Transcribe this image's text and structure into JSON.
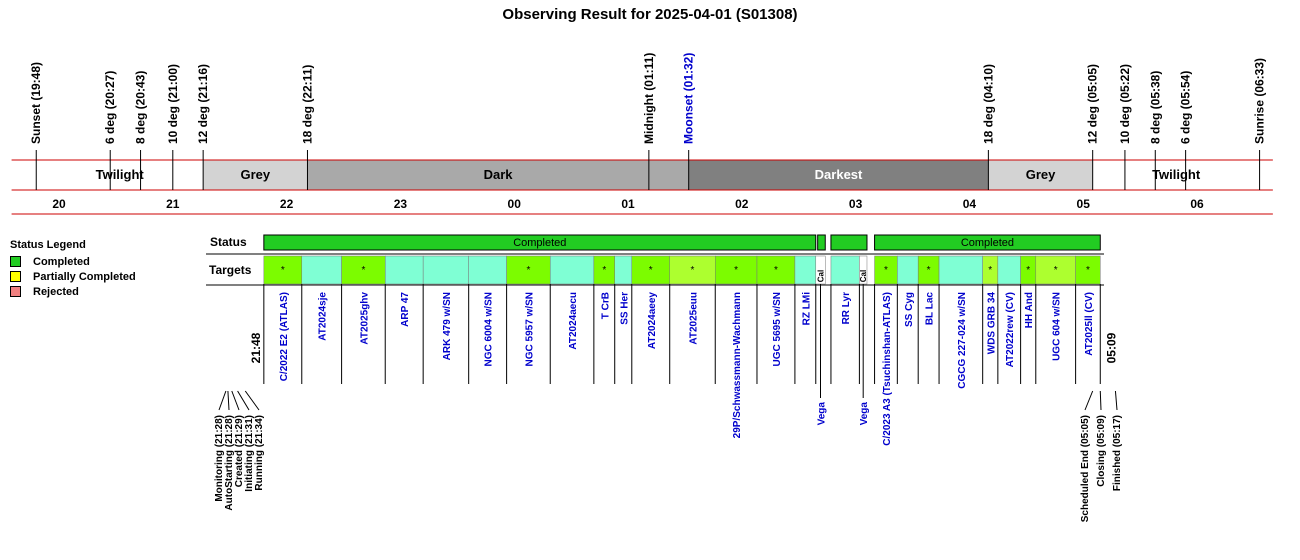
{
  "title": "Observing Result for 2025-04-01 (S01308)",
  "legend": {
    "title": "Status Legend",
    "items": [
      {
        "label": "Completed",
        "color": "#22cc22"
      },
      {
        "label": "Partially Completed",
        "color": "#ffff00"
      },
      {
        "label": "Rejected",
        "color": "#f08080"
      }
    ]
  },
  "chart_data": {
    "type": "timeline",
    "title": "Observing Result for 2025-04-01 (S01308)",
    "time_range": [
      "19:35",
      "06:40"
    ],
    "hour_ticks": [
      "20",
      "21",
      "22",
      "23",
      "00",
      "01",
      "02",
      "03",
      "04",
      "05",
      "06"
    ],
    "events": [
      {
        "label": "Sunset (19:48)",
        "time": "19:48"
      },
      {
        "label": "6 deg (20:27)",
        "time": "20:27"
      },
      {
        "label": "8 deg (20:43)",
        "time": "20:43"
      },
      {
        "label": "10 deg (21:00)",
        "time": "21:00"
      },
      {
        "label": "12 deg (21:16)",
        "time": "21:16"
      },
      {
        "label": "18 deg (22:11)",
        "time": "22:11"
      },
      {
        "label": "Midnight (01:11)",
        "time": "01:11"
      },
      {
        "label": "Moonset (01:32)",
        "time": "01:32",
        "color": "#0000cc"
      },
      {
        "label": "18 deg (04:10)",
        "time": "04:10"
      },
      {
        "label": "12 deg (05:05)",
        "time": "05:05"
      },
      {
        "label": "10 deg (05:22)",
        "time": "05:22"
      },
      {
        "label": "8 deg (05:38)",
        "time": "05:38"
      },
      {
        "label": "6 deg (05:54)",
        "time": "05:54"
      },
      {
        "label": "Sunrise (06:33)",
        "time": "06:33"
      }
    ],
    "phases": [
      {
        "label": "",
        "start": "19:35",
        "end": "19:48",
        "color": "#ffffff",
        "text": "#000000"
      },
      {
        "label": "Twilight",
        "start": "19:48",
        "end": "21:16",
        "color": "#ffffff",
        "text": "#000000"
      },
      {
        "label": "Grey",
        "start": "21:16",
        "end": "22:11",
        "color": "#d3d3d3",
        "text": "#000000"
      },
      {
        "label": "Dark",
        "start": "22:11",
        "end": "01:32",
        "color": "#a9a9a9",
        "text": "#000000"
      },
      {
        "label": "Darkest",
        "start": "01:32",
        "end": "04:10",
        "color": "#808080",
        "text": "#ffffff"
      },
      {
        "label": "Grey",
        "start": "04:10",
        "end": "05:05",
        "color": "#d3d3d3",
        "text": "#000000"
      },
      {
        "label": "Twilight",
        "start": "05:05",
        "end": "06:33",
        "color": "#ffffff",
        "text": "#000000"
      },
      {
        "label": "",
        "start": "06:33",
        "end": "06:40",
        "color": "#ffffff",
        "text": "#000000"
      }
    ],
    "status_row_label": "Status",
    "targets_row_label": "Targets",
    "status_segments": [
      {
        "start": "21:48",
        "end": "02:39",
        "status": "Completed",
        "label": "Completed"
      },
      {
        "start": "02:40",
        "end": "02:44",
        "status": "Completed",
        "label": ""
      },
      {
        "start": "02:47",
        "end": "03:06",
        "status": "Completed",
        "label": ""
      },
      {
        "start": "03:10",
        "end": "05:09",
        "status": "Completed",
        "label": "Completed"
      }
    ],
    "start_marker": "21:48",
    "end_marker": "05:09",
    "targets": [
      {
        "name": "C/2022 E2 (ATLAS)",
        "start": "21:48",
        "end": "22:08",
        "color": "#7cfc00",
        "mark": "*"
      },
      {
        "name": "AT2024sje",
        "start": "22:08",
        "end": "22:29",
        "color": "#7fffd4",
        "mark": ""
      },
      {
        "name": "AT2025ghv",
        "start": "22:29",
        "end": "22:52",
        "color": "#7cfc00",
        "mark": "*"
      },
      {
        "name": "ARP 47",
        "start": "22:52",
        "end": "23:12",
        "color": "#7fffd4",
        "mark": ""
      },
      {
        "name": "ARK 479 w/SN",
        "start": "23:12",
        "end": "23:36",
        "color": "#7fffd4",
        "mark": ""
      },
      {
        "name": "NGC 6004 w/SN",
        "start": "23:36",
        "end": "23:56",
        "color": "#7fffd4",
        "mark": ""
      },
      {
        "name": "NGC 5957 w/SN",
        "start": "23:56",
        "end": "00:19",
        "color": "#7cfc00",
        "mark": "*"
      },
      {
        "name": "AT2024aecu",
        "start": "00:19",
        "end": "00:42",
        "color": "#7fffd4",
        "mark": ""
      },
      {
        "name": "T CrB",
        "start": "00:42",
        "end": "00:53",
        "color": "#7cfc00",
        "mark": "*"
      },
      {
        "name": "SS Her",
        "start": "00:53",
        "end": "01:02",
        "color": "#7fffd4",
        "mark": ""
      },
      {
        "name": "AT2024aeey",
        "start": "01:02",
        "end": "01:22",
        "color": "#7cfc00",
        "mark": "*"
      },
      {
        "name": "AT2025euu",
        "start": "01:22",
        "end": "01:46",
        "color": "#adff2f",
        "mark": "*"
      },
      {
        "name": "29P/Schwassmann-Wachmann",
        "start": "01:46",
        "end": "02:08",
        "color": "#7cfc00",
        "mark": "*"
      },
      {
        "name": "UGC 5695 w/SN",
        "start": "02:08",
        "end": "02:28",
        "color": "#7cfc00",
        "mark": "*"
      },
      {
        "name": "RZ LMi",
        "start": "02:28",
        "end": "02:39",
        "color": "#7fffd4",
        "mark": ""
      },
      {
        "name": "Vega",
        "start": "02:39",
        "end": "02:44",
        "color": "#ffffff",
        "mark": "Cal"
      },
      {
        "name": "RR Lyr",
        "start": "02:47",
        "end": "03:02",
        "color": "#7fffd4",
        "mark": ""
      },
      {
        "name": "Vega",
        "start": "03:02",
        "end": "03:06",
        "color": "#ffffff",
        "mark": "Cal"
      },
      {
        "name": "C/2023 A3 (Tsuchinshan-ATLAS)",
        "start": "03:10",
        "end": "03:22",
        "color": "#7cfc00",
        "mark": "*"
      },
      {
        "name": "SS Cyg",
        "start": "03:22",
        "end": "03:33",
        "color": "#7fffd4",
        "mark": ""
      },
      {
        "name": "BL Lac",
        "start": "03:33",
        "end": "03:44",
        "color": "#7cfc00",
        "mark": "*"
      },
      {
        "name": "CGCG 227-024 w/SN",
        "start": "03:44",
        "end": "04:07",
        "color": "#7fffd4",
        "mark": ""
      },
      {
        "name": "WDS GRB 34",
        "start": "04:07",
        "end": "04:15",
        "color": "#adff2f",
        "mark": "*"
      },
      {
        "name": "AT2022rew (CV)",
        "start": "04:15",
        "end": "04:27",
        "color": "#7fffd4",
        "mark": ""
      },
      {
        "name": "HH And",
        "start": "04:27",
        "end": "04:35",
        "color": "#7cfc00",
        "mark": "*"
      },
      {
        "name": "UGC 604 w/SN",
        "start": "04:35",
        "end": "04:56",
        "color": "#adff2f",
        "mark": "*"
      },
      {
        "name": "AT2025ll (CV)",
        "start": "04:56",
        "end": "05:09",
        "color": "#7cfc00",
        "mark": "*"
      }
    ],
    "start_events": [
      {
        "label": "Monitoring (21:28)",
        "time": "21:28"
      },
      {
        "label": "AutoStarting (21:28)",
        "time": "21:28"
      },
      {
        "label": "Created (21:29)",
        "time": "21:29"
      },
      {
        "label": "Initiating (21:31)",
        "time": "21:31"
      },
      {
        "label": "Running (21:34)",
        "time": "21:34"
      }
    ],
    "end_events": [
      {
        "label": "Scheduled End (05:05)",
        "time": "05:05"
      },
      {
        "label": "Closing (05:09)",
        "time": "05:09"
      },
      {
        "label": "Finished (05:17)",
        "time": "05:17"
      }
    ]
  }
}
